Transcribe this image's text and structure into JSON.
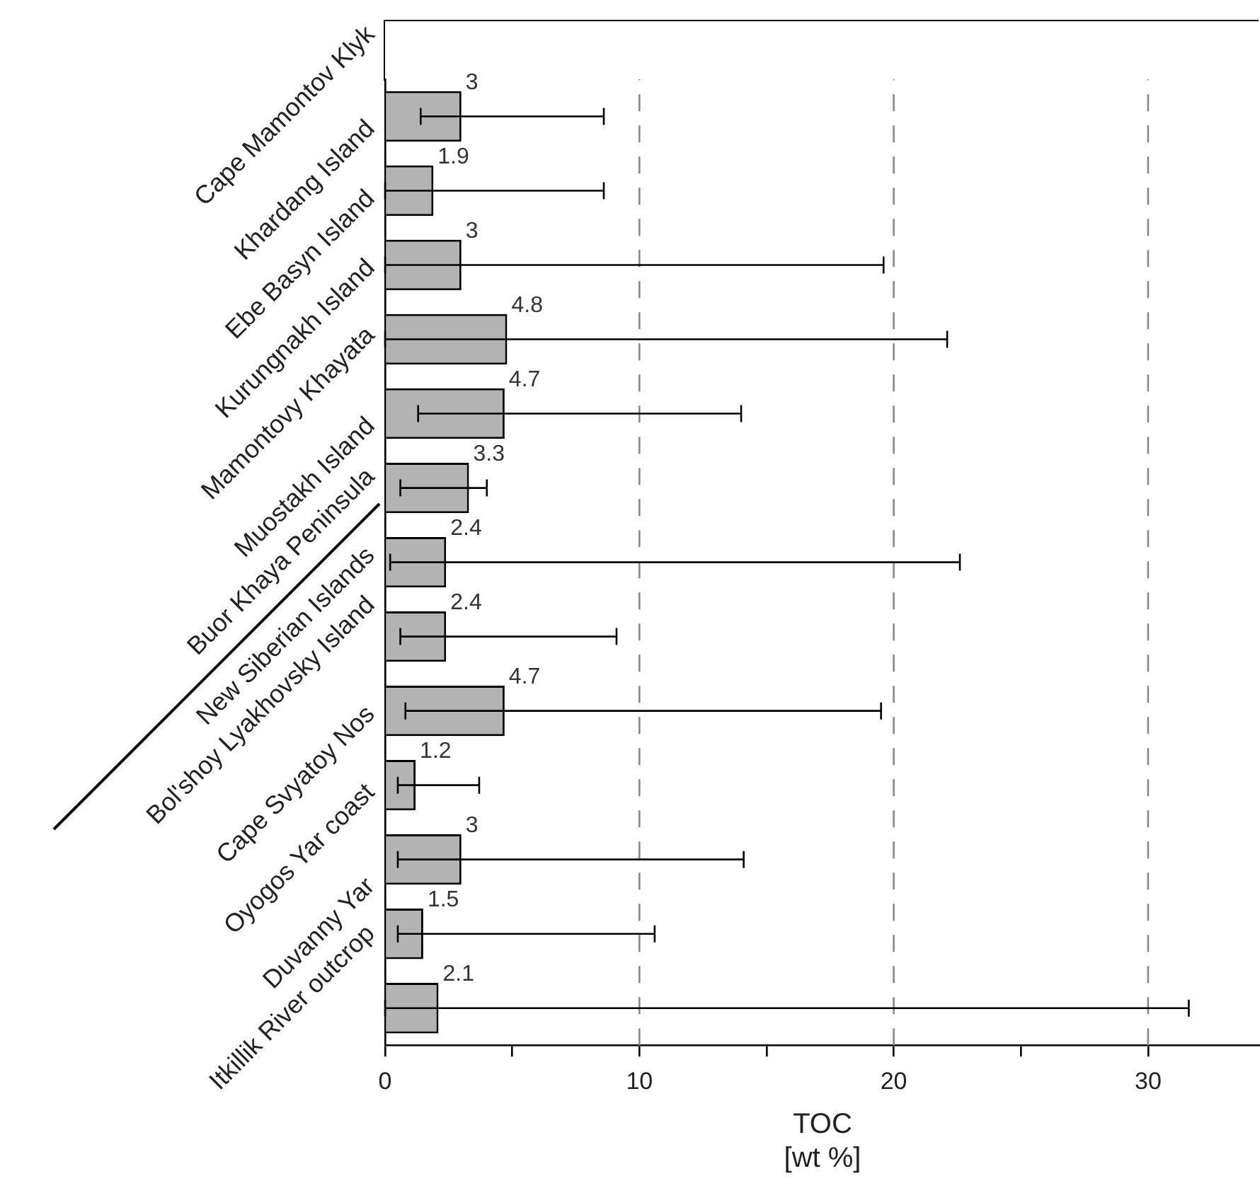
{
  "chart_data": {
    "type": "bar",
    "orientation": "horizontal",
    "xlabel": "TOC\n[wt %]",
    "categories": [
      "Cape Mamontov Klyk",
      "Khardang Island",
      "Ebe Basyn Island",
      "Kurungnakh Island",
      "Mamontovy Khayata",
      "Muostakh Island",
      "Buor Khaya Peninsula",
      "New Siberian Islands",
      "Bol'shoy Lyakhovsky Island",
      "Cape Svyatoy Nos",
      "Oyogos Yar coast",
      "Duvanny Yar",
      "Itkillik River outcrop"
    ],
    "values": [
      3,
      1.9,
      3,
      4.8,
      4.7,
      3.3,
      2.4,
      2.4,
      4.7,
      1.2,
      3,
      1.5,
      2.1
    ],
    "errors": [
      [
        1.4,
        8.6
      ],
      [
        0,
        8.6
      ],
      [
        0,
        19.6
      ],
      [
        0,
        22.1
      ],
      [
        1.3,
        14.0
      ],
      [
        0.6,
        4.0
      ],
      [
        0.2,
        22.6
      ],
      [
        0.6,
        9.1
      ],
      [
        0.8,
        19.5
      ],
      [
        0.5,
        3.7
      ],
      [
        0.5,
        14.1
      ],
      [
        0.5,
        10.6
      ],
      [
        0,
        31.6
      ]
    ],
    "color": "#b3b3b3",
    "data_labels": true,
    "xlim": [
      0,
      34.4
    ],
    "xticks": [
      0,
      {
        "value": 5,
        "label": null
      },
      10,
      {
        "value": 15,
        "label": null
      },
      20,
      {
        "value": 25,
        "label": null
      },
      30
    ],
    "grid": "x",
    "legend": false
  }
}
